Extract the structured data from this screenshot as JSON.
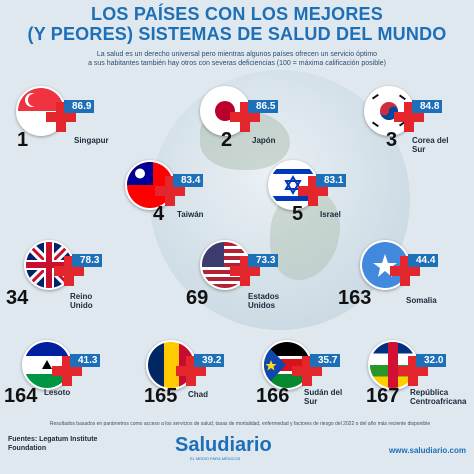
{
  "title_line1": "LOS PAÍSES CON LOS MEJORES",
  "title_line2": "(Y PEORES) SISTEMAS DE SALUD DEL MUNDO",
  "subtitle_line1": "La salud es un derecho universal pero mientras algunos países ofrecen un servicio óptimo",
  "subtitle_line2": "a sus habitantes también hay otros con severas deficiencias (100 = máxima calificación posible)",
  "footnote": "Resultados basados en parámetros como acceso a los servicios de salud, tasas de mortalidad, enfermedad y factores de riesgo del 2022 o del año más reciente disponible",
  "source": "Fuentes: Legatum Institute Foundation",
  "brand": "Saludiario",
  "brand_tag": "EL MEDIO PARA MÉDICOS",
  "website": "www.saludiario.com",
  "colors": {
    "title": "#1d6fb8",
    "cross": "#e3262b",
    "score_bg": "#1d6fb8"
  },
  "chart_data": {
    "type": "table",
    "columns": [
      "rank",
      "country",
      "score"
    ],
    "rows": [
      {
        "rank": "1",
        "country": "Singapur",
        "score": "86.9",
        "flag_icon": "singapore-flag-icon"
      },
      {
        "rank": "2",
        "country": "Japón",
        "score": "86.5",
        "flag_icon": "japan-flag-icon"
      },
      {
        "rank": "3",
        "country": "Corea del Sur",
        "score": "84.8",
        "flag_icon": "south-korea-flag-icon"
      },
      {
        "rank": "4",
        "country": "Taiwán",
        "score": "83.4",
        "flag_icon": "taiwan-flag-icon"
      },
      {
        "rank": "5",
        "country": "Israel",
        "score": "83.1",
        "flag_icon": "israel-flag-icon"
      },
      {
        "rank": "34",
        "country": "Reino Unido",
        "score": "78.3",
        "flag_icon": "uk-flag-icon"
      },
      {
        "rank": "69",
        "country": "Estados Unidos",
        "score": "73.3",
        "flag_icon": "usa-flag-icon"
      },
      {
        "rank": "163",
        "country": "Somalia",
        "score": "44.4",
        "flag_icon": "somalia-flag-icon"
      },
      {
        "rank": "164",
        "country": "Lesoto",
        "score": "41.3",
        "flag_icon": "lesotho-flag-icon"
      },
      {
        "rank": "165",
        "country": "Chad",
        "score": "39.2",
        "flag_icon": "chad-flag-icon"
      },
      {
        "rank": "166",
        "country": "Sudán del Sur",
        "score": "35.7",
        "flag_icon": "south-sudan-flag-icon"
      },
      {
        "rank": "167",
        "country": "República Centroafricana",
        "score": "32.0",
        "flag_icon": "car-flag-icon"
      }
    ]
  }
}
